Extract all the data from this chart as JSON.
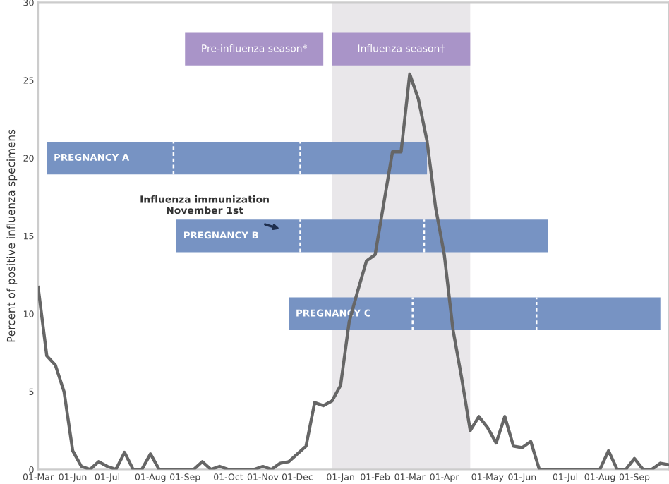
{
  "chart_data": {
    "type": "line",
    "ylabel": "Percent of positive influenza specimens",
    "categories": [
      "01-Mar",
      null,
      null,
      null,
      "01-Jun",
      null,
      null,
      null,
      "01-Jul",
      null,
      null,
      null,
      null,
      "01-Aug",
      null,
      null,
      null,
      "01-Sep",
      null,
      null,
      null,
      null,
      "01-Oct",
      null,
      null,
      null,
      "01-Nov",
      null,
      null,
      null,
      "01-Dec",
      null,
      null,
      null,
      null,
      "01-Jan",
      null,
      null,
      null,
      "01-Feb",
      null,
      null,
      null,
      "01-Mar",
      null,
      null,
      null,
      "01-Apr",
      null,
      null,
      null,
      null,
      "01-May",
      null,
      null,
      null,
      "01-Jun",
      null,
      null,
      null,
      null,
      "01-Jul",
      null,
      null,
      null,
      "01-Aug",
      null,
      null,
      null,
      "01-Sep",
      null,
      null,
      null,
      null
    ],
    "ylim": [
      0,
      30
    ],
    "yticks": [
      0,
      5,
      10,
      15,
      20,
      25,
      30
    ],
    "grid": false,
    "legend": false,
    "marker": "none",
    "line_style": "solid",
    "series": [
      {
        "type": "area",
        "color": "#e9e7ea",
        "values": [
          null,
          null,
          null,
          null,
          null,
          null,
          null,
          null,
          null,
          null,
          null,
          null,
          null,
          null,
          null,
          null,
          null,
          null,
          null,
          null,
          null,
          null,
          null,
          null,
          null,
          null,
          null,
          null,
          null,
          null,
          null,
          null,
          null,
          null,
          30,
          30,
          30,
          30,
          30,
          30,
          30,
          30,
          30,
          30,
          30,
          30,
          30,
          30,
          30,
          30,
          30,
          null,
          null,
          null,
          null,
          null,
          null,
          null,
          null,
          null,
          null,
          null,
          null,
          null,
          null,
          null,
          null,
          null,
          null,
          null,
          null,
          null,
          null,
          null
        ]
      },
      {
        "color": "#666666",
        "values": [
          11.7,
          7.3,
          6.7,
          5.0,
          1.2,
          0.2,
          0,
          0.5,
          0.2,
          0,
          1.1,
          0,
          0,
          1.0,
          0,
          0,
          0,
          0,
          0,
          0.5,
          0,
          0.2,
          0,
          0,
          0,
          0,
          0.2,
          0,
          0.4,
          0.5,
          1.0,
          1.5,
          4.3,
          4.1,
          4.4,
          5.4,
          9.5,
          11.5,
          13.4,
          13.8,
          17.1,
          20.4,
          20.4,
          25.4,
          23.8,
          21.1,
          16.8,
          13.8,
          9.0,
          5.9,
          2.5,
          3.4,
          2.7,
          1.7,
          3.4,
          1.5,
          1.4,
          1.8,
          0,
          0,
          0,
          0,
          0,
          0,
          0,
          0,
          1.2,
          0,
          0,
          0.7,
          0,
          0,
          0.4,
          0.3
        ]
      },
      {
        "type": "line",
        "name": "Pre-influenza season*",
        "color": "#a994c8",
        "values": [
          null,
          null,
          null,
          null,
          null,
          null,
          null,
          null,
          null,
          null,
          null,
          null,
          null,
          null,
          null,
          null,
          null,
          27,
          27,
          27,
          27,
          27,
          27,
          27,
          27,
          27,
          27,
          27,
          27,
          27,
          27,
          27,
          27,
          27,
          null,
          null,
          null,
          null,
          null,
          null,
          null,
          null,
          null,
          null,
          null,
          null,
          null,
          null,
          null,
          null,
          null,
          null,
          null,
          null,
          null,
          null,
          null,
          null,
          null,
          null,
          null,
          null,
          null,
          null,
          null,
          null,
          null,
          null,
          null,
          null,
          null,
          null,
          null,
          null
        ]
      },
      {
        "type": "line",
        "name": "Influenza season†",
        "color": "#a994c8",
        "values": [
          null,
          null,
          null,
          null,
          null,
          null,
          null,
          null,
          null,
          null,
          null,
          null,
          null,
          null,
          null,
          null,
          null,
          null,
          null,
          null,
          null,
          null,
          null,
          null,
          null,
          null,
          null,
          null,
          null,
          null,
          null,
          null,
          null,
          null,
          27,
          27,
          27,
          27,
          27,
          27,
          27,
          27,
          27,
          27,
          27,
          27,
          27,
          27,
          27,
          27,
          27,
          null,
          null,
          null,
          null,
          null,
          null,
          null,
          null,
          null,
          null,
          null,
          null,
          null,
          null,
          null,
          null,
          null,
          null,
          null,
          null,
          null,
          null,
          null
        ]
      },
      {
        "type": "line",
        "name": "PREGNANCY A",
        "color": "#7793c3",
        "values": [
          null,
          20,
          20,
          20,
          20,
          20,
          20,
          20,
          20,
          20,
          20,
          20,
          20,
          20,
          20,
          20,
          20,
          20,
          20,
          20,
          20,
          20,
          20,
          20,
          20,
          20,
          20,
          20,
          20,
          20,
          20,
          20,
          20,
          20,
          20,
          20,
          20,
          20,
          20,
          20,
          20,
          20,
          20,
          20,
          20,
          20,
          null,
          null,
          null,
          null,
          null,
          null,
          null,
          null,
          null,
          null,
          null,
          null,
          null,
          null,
          null,
          null,
          null,
          null,
          null,
          null,
          null,
          null,
          null,
          null,
          null,
          null,
          null,
          null
        ]
      },
      {
        "type": "line",
        "name": "PREGNANCY B",
        "color": "#7793c3",
        "values": [
          null,
          null,
          null,
          null,
          null,
          null,
          null,
          null,
          null,
          null,
          null,
          null,
          null,
          null,
          null,
          null,
          15,
          15,
          15,
          15,
          15,
          15,
          15,
          15,
          15,
          15,
          15,
          15,
          15,
          15,
          15,
          15,
          15,
          15,
          15,
          15,
          15,
          15,
          15,
          15,
          15,
          15,
          15,
          15,
          15,
          15,
          15,
          15,
          15,
          15,
          15,
          15,
          15,
          15,
          15,
          15,
          15,
          15,
          15,
          15,
          null,
          null,
          null,
          null,
          null,
          null,
          null,
          null,
          null,
          null,
          null,
          null,
          null,
          null
        ]
      },
      {
        "type": "line",
        "name": "PREGNANCY C",
        "color": "#7793c3",
        "values": [
          null,
          null,
          null,
          null,
          null,
          null,
          null,
          null,
          null,
          null,
          null,
          null,
          null,
          null,
          null,
          null,
          null,
          null,
          null,
          null,
          null,
          null,
          null,
          null,
          null,
          null,
          null,
          null,
          null,
          10,
          10,
          10,
          10,
          10,
          10,
          10,
          10,
          10,
          10,
          10,
          10,
          10,
          10,
          10,
          10,
          10,
          10,
          10,
          10,
          10,
          10,
          10,
          10,
          10,
          10,
          10,
          10,
          10,
          10,
          10,
          10,
          10,
          10,
          10,
          10,
          10,
          10,
          10,
          10,
          10,
          10,
          10,
          10,
          null
        ]
      }
    ],
    "annotations": [
      "Influenza immunization\nNovember 1st"
    ]
  }
}
